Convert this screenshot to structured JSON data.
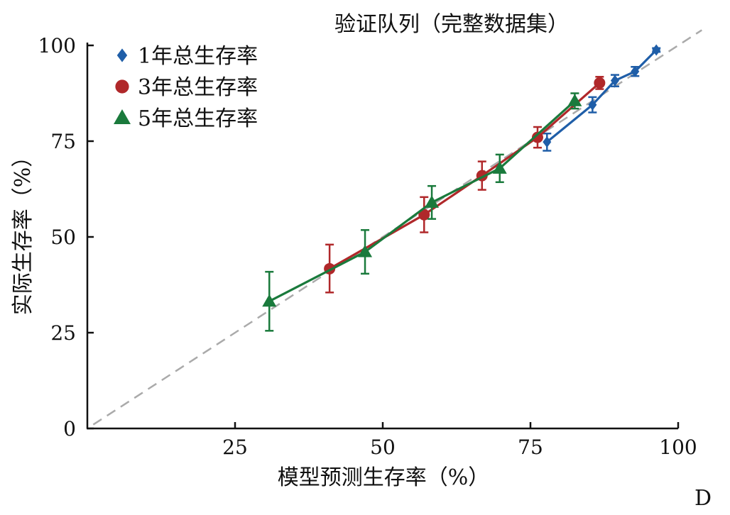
{
  "chart_data": {
    "type": "line",
    "title": "验证队列（完整数据集）",
    "xlabel": "模型预测生存率（%）",
    "ylabel": "实际生存率（%）",
    "panel_label": "D",
    "xlim": [
      0,
      100
    ],
    "ylim": [
      0,
      100
    ],
    "x_ticks": [
      25,
      50,
      75,
      100
    ],
    "y_ticks": [
      0,
      25,
      50,
      75,
      100
    ],
    "grid": false,
    "legend_position": "top-left",
    "reference_line": {
      "style": "dashed",
      "color": "#aaaaaa",
      "from": [
        1,
        1
      ],
      "to": [
        104,
        104
      ]
    },
    "series": [
      {
        "name": "1年总生存率",
        "marker": "diamond",
        "color": "#1f5ea8",
        "points": [
          {
            "x": 77.8,
            "y": 74.8,
            "lo": 72.5,
            "hi": 77.0
          },
          {
            "x": 85.5,
            "y": 84.5,
            "lo": 82.5,
            "hi": 86.5
          },
          {
            "x": 89.3,
            "y": 90.8,
            "lo": 89.3,
            "hi": 92.3
          },
          {
            "x": 92.7,
            "y": 93.2,
            "lo": 92.0,
            "hi": 94.4
          },
          {
            "x": 96.3,
            "y": 98.8,
            "lo": 98.3,
            "hi": 99.3
          }
        ]
      },
      {
        "name": "3年总生存率",
        "marker": "circle",
        "color": "#b0282a",
        "points": [
          {
            "x": 41.0,
            "y": 41.7,
            "lo": 35.5,
            "hi": 48.0
          },
          {
            "x": 57.0,
            "y": 55.8,
            "lo": 51.2,
            "hi": 60.4
          },
          {
            "x": 66.8,
            "y": 66.0,
            "lo": 62.3,
            "hi": 69.7
          },
          {
            "x": 76.2,
            "y": 76.0,
            "lo": 73.3,
            "hi": 78.7
          },
          {
            "x": 86.7,
            "y": 90.2,
            "lo": 88.6,
            "hi": 91.8
          }
        ]
      },
      {
        "name": "5年总生存率",
        "marker": "triangle",
        "color": "#1a7a3c",
        "points": [
          {
            "x": 30.8,
            "y": 33.2,
            "lo": 25.5,
            "hi": 40.9
          },
          {
            "x": 47.0,
            "y": 46.1,
            "lo": 40.4,
            "hi": 51.8
          },
          {
            "x": 58.3,
            "y": 59.0,
            "lo": 54.7,
            "hi": 63.3
          },
          {
            "x": 69.8,
            "y": 67.9,
            "lo": 64.3,
            "hi": 71.5
          },
          {
            "x": 82.5,
            "y": 85.5,
            "lo": 83.5,
            "hi": 87.5
          }
        ]
      }
    ]
  }
}
